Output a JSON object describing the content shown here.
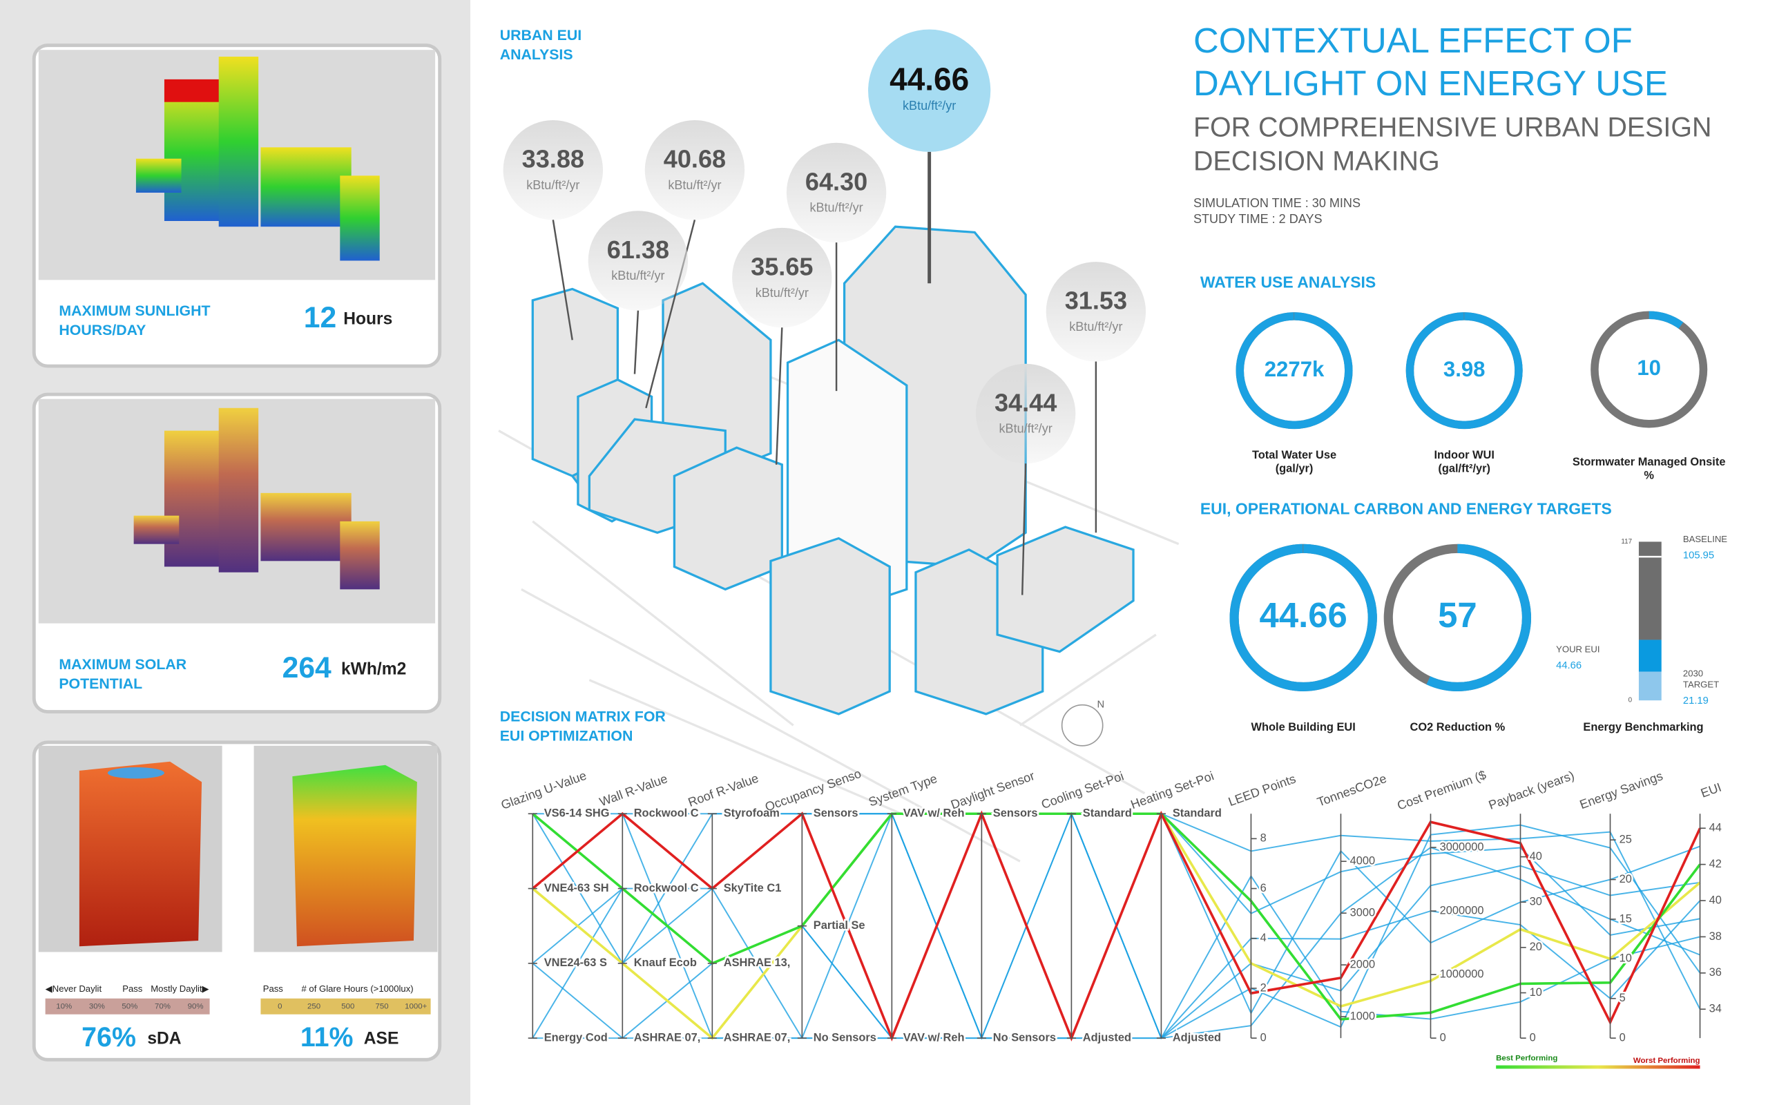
{
  "left_panel": {
    "sunlight": {
      "label": [
        "MAXIMUM SUNLIGHT",
        "HOURS/DAY"
      ],
      "value": "12",
      "unit": "Hours"
    },
    "solar": {
      "label": [
        "MAXIMUM SOLAR",
        "POTENTIAL"
      ],
      "value": "264",
      "unit": "kWh/m2"
    },
    "sda": {
      "value": "76%",
      "unit": "sDA",
      "legend": [
        "◀Never Daylit",
        "Pass",
        "Mostly Daylit▶"
      ],
      "scale": [
        "10%",
        "30%",
        "50%",
        "70%",
        "90%"
      ]
    },
    "ase": {
      "value": "11%",
      "unit": "ASE",
      "legend": [
        "Pass",
        "# of Glare Hours (>1000lux)"
      ],
      "scale": [
        "0",
        "250",
        "500",
        "750",
        "1000+"
      ]
    }
  },
  "urban_eui": {
    "title": [
      "URBAN EUI",
      "ANALYSIS"
    ],
    "unit": "kBtu/ft²/yr",
    "bubbles": [
      "33.88",
      "40.68",
      "44.66",
      "64.30",
      "61.38",
      "35.65",
      "31.53",
      "34.44"
    ]
  },
  "header": {
    "title": [
      "CONTEXTUAL EFFECT OF",
      "DAYLIGHT ON ENERGY USE"
    ],
    "subtitle": [
      "FOR COMPREHENSIVE URBAN DESIGN",
      "DECISION MAKING"
    ],
    "notes": [
      "SIMULATION TIME : 30 MINS",
      "STUDY TIME : 2 DAYS"
    ]
  },
  "water": {
    "title": "WATER USE ANALYSIS",
    "rings": [
      {
        "value": "2277k",
        "label": [
          "Total Water Use",
          "(gal/yr)"
        ],
        "percent": 100
      },
      {
        "value": "3.98",
        "label": [
          "Indoor WUI",
          "(gal/ft²/yr)"
        ],
        "percent": 100
      },
      {
        "value": "10",
        "label": [
          "Stormwater Managed Onsite",
          "%"
        ],
        "percent": 10
      }
    ]
  },
  "targets": {
    "title": "EUI, OPERATIONAL CARBON AND ENERGY TARGETS",
    "rings": [
      {
        "value": "44.66",
        "label": "Whole Building EUI",
        "percent": 100
      },
      {
        "value": "57",
        "label": "CO2 Reduction %",
        "percent": 57
      }
    ],
    "benchmark": {
      "label": "Energy Benchmarking",
      "ylim": [
        0,
        117
      ],
      "yticks": [
        0,
        117
      ],
      "baseline": {
        "label": "BASELINE",
        "value": 105.95
      },
      "your_eui": {
        "label": "YOUR EUI",
        "value": 44.66
      },
      "target": {
        "label": [
          "2030",
          "TARGET"
        ],
        "value": 21.19
      }
    }
  },
  "chart_data": {
    "type": "parallel",
    "title": [
      "DECISION MATRIX FOR",
      "EUI OPTIMIZATION"
    ],
    "axes": [
      {
        "name": "Glazing U-Value",
        "categories": [
          "VS6-14 SHG",
          "VNE4-63 SH",
          "VNE24-63 S",
          "Energy Cod"
        ]
      },
      {
        "name": "Wall R-Value",
        "categories": [
          "Rockwool C",
          "Rockwool C",
          "Knauf Ecob",
          "ASHRAE 07,"
        ]
      },
      {
        "name": "Roof R-Value",
        "categories": [
          "Styrofoam",
          "SkyTite C1",
          "ASHRAE 13,",
          "ASHRAE 07,"
        ]
      },
      {
        "name": "Occupancy Senso",
        "categories": [
          "Sensors",
          "Partial Se",
          "No Sensors"
        ]
      },
      {
        "name": "System Type",
        "categories": [
          "VAV w/ Reh",
          "VAV w/ Reh"
        ]
      },
      {
        "name": "Daylight Sensor",
        "categories": [
          "Sensors",
          "No Sensors"
        ]
      },
      {
        "name": "Cooling Set-Poi",
        "categories": [
          "Standard",
          "Adjusted"
        ]
      },
      {
        "name": "Heating Set-Poi",
        "categories": [
          "Standard",
          "Adjusted"
        ]
      },
      {
        "name": "LEED Points",
        "ylim": [
          0,
          9
        ],
        "yticks": [
          0,
          2,
          4,
          6,
          8
        ]
      },
      {
        "name": "TonnesCO2e",
        "ylim": [
          585,
          4920
        ],
        "yticks": [
          1000,
          2000,
          3000,
          4000
        ]
      },
      {
        "name": "Cost Premium ($",
        "ylim": [
          0,
          3530000
        ],
        "yticks": [
          0,
          1000000,
          2000000,
          3000000
        ]
      },
      {
        "name": "Payback (years)",
        "ylim": [
          0,
          49.5
        ],
        "yticks": [
          0,
          10,
          20,
          30,
          40
        ]
      },
      {
        "name": "Energy Savings",
        "ylim": [
          0,
          28.3
        ],
        "yticks": [
          0,
          5,
          10,
          15,
          20,
          25
        ]
      },
      {
        "name": "EUI",
        "ylim": [
          32.4,
          44.8
        ],
        "yticks": [
          34,
          36,
          38,
          40,
          42,
          44
        ]
      }
    ],
    "lines": [
      {
        "color": "#1ba1e2",
        "values": [
          0,
          0,
          0,
          0,
          0,
          0,
          0,
          0,
          7.5,
          4500,
          3100000,
          44,
          26,
          34
        ]
      },
      {
        "color": "#1ba1e2",
        "values": [
          1,
          2,
          1,
          2,
          1,
          1,
          0,
          1,
          3,
          1500,
          2400000,
          38,
          18,
          41
        ]
      },
      {
        "color": "#1ba1e2",
        "values": [
          2,
          3,
          3,
          2,
          0,
          1,
          1,
          0,
          5,
          3800,
          2900000,
          42,
          13,
          39
        ]
      },
      {
        "color": "#1ba1e2",
        "values": [
          3,
          1,
          2,
          1,
          1,
          0,
          0,
          1,
          2,
          800,
          3200000,
          47,
          24,
          36
        ]
      },
      {
        "color": "#1ba1e2",
        "values": [
          0,
          2,
          0,
          0,
          0,
          1,
          1,
          1,
          6.5,
          1100,
          300000,
          8,
          10,
          38
        ]
      },
      {
        "color": "#1ba1e2",
        "values": [
          1,
          0,
          3,
          2,
          1,
          0,
          1,
          0,
          1,
          4200,
          1500000,
          30,
          20,
          43
        ]
      },
      {
        "color": "#1ba1e2",
        "values": [
          2,
          1,
          1,
          0,
          0,
          1,
          0,
          1,
          4,
          2500,
          2000000,
          25,
          5,
          40
        ]
      },
      {
        "color": "#1ba1e2",
        "values": [
          3,
          3,
          2,
          1,
          1,
          1,
          1,
          1,
          0.5,
          3000,
          3000000,
          35,
          15,
          37
        ]
      },
      {
        "color": "#e8e84a",
        "values": [
          1,
          2,
          3,
          1,
          0,
          0,
          0,
          0,
          3,
          1200,
          900000,
          24,
          10,
          41
        ]
      },
      {
        "color": "#33dd33",
        "values": [
          0,
          1,
          2,
          1,
          0,
          0,
          0,
          0,
          5.5,
          950,
          400000,
          12,
          7,
          42
        ]
      },
      {
        "color": "#e02020",
        "values": [
          1,
          0,
          1,
          0,
          1,
          0,
          1,
          0,
          1.8,
          1750,
          3400000,
          43,
          2,
          44
        ]
      }
    ],
    "legend": [
      "Best Performing",
      "Worst Performing"
    ]
  }
}
